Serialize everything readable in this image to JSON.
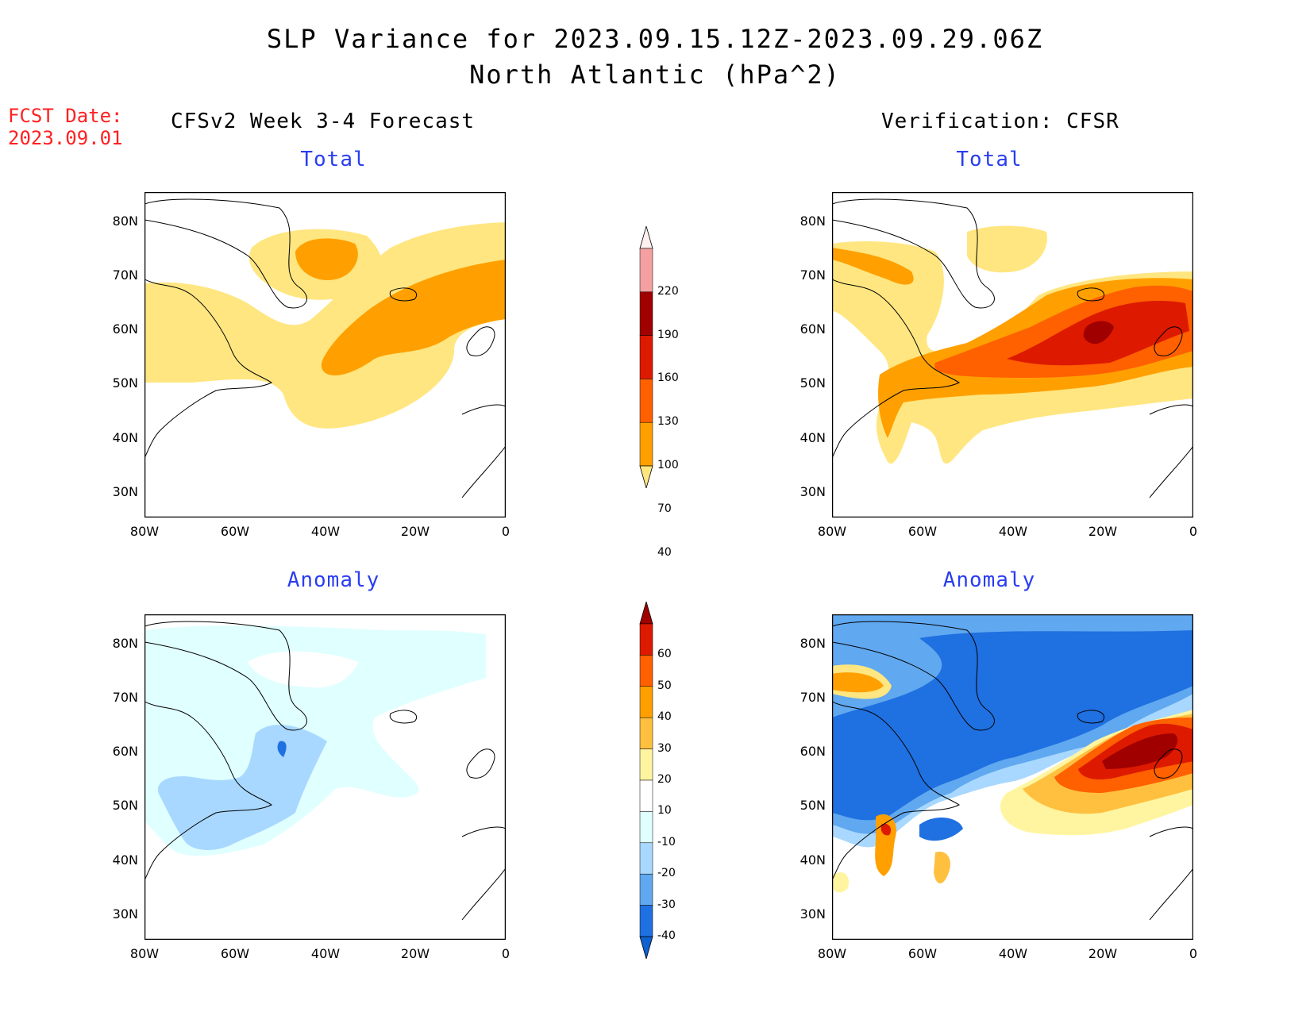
{
  "title": {
    "line1": "SLP Variance for 2023.09.15.12Z-2023.09.29.06Z",
    "line2": "North Atlantic (hPa^2)"
  },
  "fcst_date": {
    "label": "FCST Date:",
    "value": "2023.09.01"
  },
  "columns": {
    "left": "CFSv2 Week 3-4 Forecast",
    "right": "Verification: CFSR"
  },
  "subtitles": {
    "total": "Total",
    "anomaly": "Anomaly"
  },
  "axes": {
    "lat_labels": [
      "80N",
      "70N",
      "60N",
      "50N",
      "40N",
      "30N"
    ],
    "lon_labels": [
      "80W",
      "60W",
      "40W",
      "20W",
      "0"
    ]
  },
  "colorbar_total": {
    "levels": [
      "220",
      "190",
      "160",
      "130",
      "100",
      "70",
      "40"
    ],
    "colors": [
      "#fff0f0",
      "#f4a0a0",
      "#a00000",
      "#dd1a00",
      "#ff6000",
      "#ffa000",
      "#ffe680"
    ]
  },
  "colorbar_anomaly": {
    "levels": [
      "60",
      "50",
      "40",
      "30",
      "20",
      "10",
      "-10",
      "-20",
      "-30",
      "-40"
    ],
    "colors": [
      "#a00000",
      "#dd1a00",
      "#ff6000",
      "#ffa000",
      "#ffc040",
      "#fff5a0",
      "#ffffff",
      "#e0ffff",
      "#a8d8ff",
      "#60a8f0",
      "#1f70e0",
      "#1060d0"
    ]
  },
  "colors": {
    "title_red": "#ff2020",
    "subtitle_blue": "#2a3df0"
  }
}
